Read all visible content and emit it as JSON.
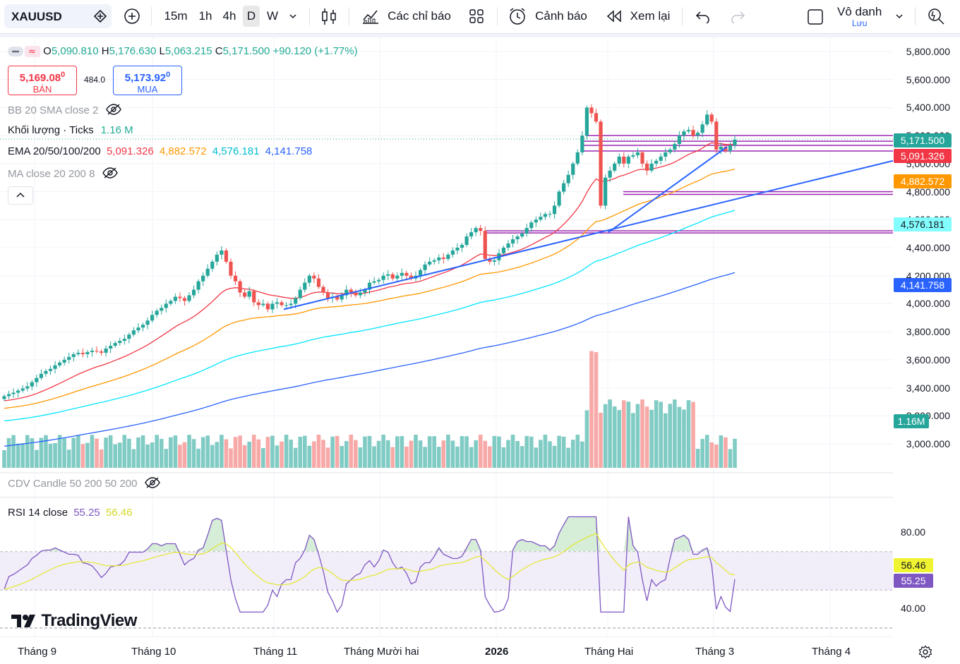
{
  "toolbar": {
    "symbol": "XAUUSD",
    "intervals": [
      "15m",
      "1h",
      "4h",
      "D",
      "W"
    ],
    "selected_interval": "D",
    "indicators_label": "Các chỉ báo",
    "alert_label": "Cảnh báo",
    "replay_label": "Xem lại",
    "layout_name": "Vô danh",
    "layout_sub": "Lưu"
  },
  "ohlc": {
    "o_label": "O",
    "o": "5,090.810",
    "h_label": "H",
    "h": "5,176.630",
    "l_label": "L",
    "l": "5,063.215",
    "c_label": "C",
    "c": "5,171.500",
    "change": "+90.120 (+1.77%)"
  },
  "trade": {
    "sell_price": "5,169.08",
    "sell_sup": "0",
    "sell_label": "BÁN",
    "spread": "484.0",
    "buy_price": "5,173.92",
    "buy_sup": "0",
    "buy_label": "MUA"
  },
  "indicators": {
    "bb": "BB 20 SMA close 2",
    "volume_label": "Khối lượng · Ticks",
    "volume_value": "1.16 M",
    "ema_label": "EMA 20/50/100/200",
    "ema20": "5,091.326",
    "ema50": "4,882.572",
    "ema100": "4,576.181",
    "ema200": "4,141.758",
    "ma": "MA close 20 200 8",
    "cdv": "CDV Candle 50 200 50 200",
    "rsi_label": "RSI 14 close",
    "rsi": "55.25",
    "rsi_ma": "56.46"
  },
  "price_axis": [
    "5,800.000",
    "5,600.000",
    "5,400.000",
    "5,200.000",
    "5,000.000",
    "4,800.000",
    "4,600.000",
    "4,400.000",
    "4,200.000",
    "4,000.000",
    "3,800.000",
    "3,600.000",
    "3,400.000",
    "3,200.000",
    "3,000.000"
  ],
  "price_tags": {
    "last": "5,171.500",
    "ema20": "5,091.326",
    "ema50": "4,882.572",
    "ema100": "4,576.181",
    "ema200": "4,141.758",
    "volume": "1.16M"
  },
  "rsi_axis": [
    "80.00",
    "40.00"
  ],
  "rsi_tags": {
    "ma": "56.46",
    "rsi": "55.25"
  },
  "time_axis": [
    "Tháng 9",
    "Tháng 10",
    "Tháng 11",
    "Tháng Mười hai",
    "2026",
    "Tháng Hai",
    "Tháng 3",
    "Tháng 4"
  ],
  "brand": "TradingView",
  "colors": {
    "up": "#26a69a",
    "down": "#ef5350",
    "ema20": "#f23645",
    "ema50": "#ff9800",
    "ema100": "#00e5ff",
    "ema200": "#2962ff",
    "level": "#9c27b0",
    "trend": "#2962ff",
    "rsi": "#7e57c2",
    "rsi_ma": "#e4e83a"
  }
}
